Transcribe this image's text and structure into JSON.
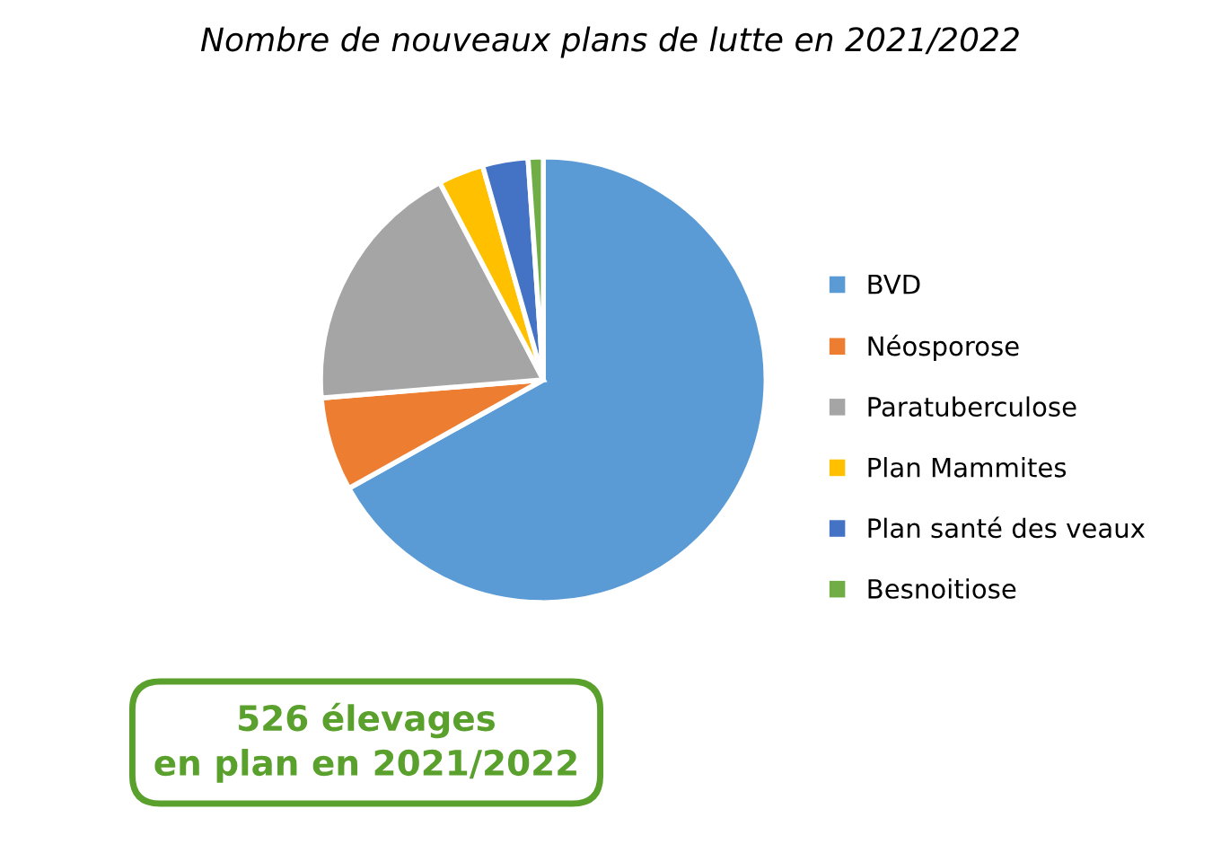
{
  "chart_data": {
    "type": "pie",
    "title": "Nombre de nouveaux plans de lutte en 2021/2022",
    "categories": [
      "BVD",
      "Néosporose",
      "Paratuberculose",
      "Plan Mammites",
      "Plan santé des veaux",
      "Besnoitiose"
    ],
    "values": [
      66.9,
      6.8,
      18.6,
      3.3,
      3.3,
      1.1
    ],
    "colors": [
      "#5b9bd5",
      "#ed7d31",
      "#a5a5a5",
      "#ffc000",
      "#4472c4",
      "#70ad47"
    ],
    "legend": "right",
    "annotations": [
      "526 élevages\nen plan en 2021/2022"
    ]
  }
}
